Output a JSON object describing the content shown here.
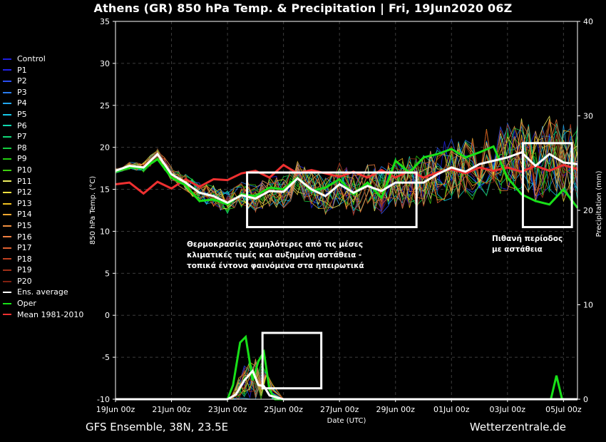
{
  "title": "Athens  (GR)  850 hPa Temp. & Precipitation | Fri, 19Jun2020 06Z",
  "footer": {
    "left": "GFS Ensemble, 38N, 23.5E",
    "right": "Wetterzentrale.de"
  },
  "annotations": {
    "box1_text": "Θερμοκρασίες χαμηλότερες από τις μέσες κλιματικές τιμές και αυξημένη αστάθεια - τοπικά έντονα φαινόμενα στα ηπειρωτικά",
    "box2_text": "Πιθανή περίοδος με αστάθεια"
  },
  "chart_data": {
    "type": "line",
    "title": "Athens  (GR)  850 hPa Temp. & Precipitation | Fri, 19Jun2020 06Z",
    "xlabel": "Date (UTC)",
    "ylabel": "850 hPa Temp. (°C)",
    "y2label": "Precipitation (mm)",
    "ylim": [
      -10,
      35
    ],
    "y2lim": [
      0,
      40
    ],
    "yticks": [
      35,
      30,
      25,
      20,
      15,
      10,
      5,
      0,
      -5,
      -10
    ],
    "y2ticks": [
      40,
      30,
      20,
      10,
      0
    ],
    "x_ticks": [
      {
        "day": 0,
        "label": "19Jun 00z"
      },
      {
        "day": 2,
        "label": "21Jun 00z"
      },
      {
        "day": 4,
        "label": "23Jun 00z"
      },
      {
        "day": 6,
        "label": "25Jun 00z"
      },
      {
        "day": 8,
        "label": "27Jun 00z"
      },
      {
        "day": 10,
        "label": "29Jun 00z"
      },
      {
        "day": 12,
        "label": "01Jul 00z"
      },
      {
        "day": 14,
        "label": "03Jul 00z"
      },
      {
        "day": 16,
        "label": "05Jul 00z"
      }
    ],
    "grid": true,
    "legend_position": "left",
    "highlight_boxes": [
      {
        "x": [
          4.7,
          10.75
        ],
        "y": [
          10.5,
          17.0
        ]
      },
      {
        "x": [
          14.55,
          16.3
        ],
        "y": [
          10.5,
          20.5
        ]
      },
      {
        "x": [
          5.25,
          7.35
        ],
        "y": [
          -8.7,
          -2.1
        ]
      }
    ],
    "series": [
      {
        "name": "Control",
        "color": "#1f1fe0"
      },
      {
        "name": "P1",
        "color": "#2222e8"
      },
      {
        "name": "P2",
        "color": "#2a4ff0"
      },
      {
        "name": "P3",
        "color": "#2a7cf0"
      },
      {
        "name": "P4",
        "color": "#22a8f0"
      },
      {
        "name": "P5",
        "color": "#16c8e8"
      },
      {
        "name": "P6",
        "color": "#10d8b0"
      },
      {
        "name": "P7",
        "color": "#10d878"
      },
      {
        "name": "P8",
        "color": "#14d040"
      },
      {
        "name": "P9",
        "color": "#22d010"
      },
      {
        "name": "P10",
        "color": "#40d010"
      },
      {
        "name": "P11",
        "color": "#f0f060"
      },
      {
        "name": "P12",
        "color": "#f0e040"
      },
      {
        "name": "P13",
        "color": "#f0c020"
      },
      {
        "name": "P14",
        "color": "#f0a830"
      },
      {
        "name": "P15",
        "color": "#f09040"
      },
      {
        "name": "P16",
        "color": "#f08040"
      },
      {
        "name": "P17",
        "color": "#e06030"
      },
      {
        "name": "P18",
        "color": "#c04020"
      },
      {
        "name": "P19",
        "color": "#a03018"
      },
      {
        "name": "P20",
        "color": "#802010"
      },
      {
        "name": "Ens. average",
        "color": "#ffffff",
        "temp": [
          [
            0,
            17.2
          ],
          [
            0.5,
            17.8
          ],
          [
            1,
            17.6
          ],
          [
            1.5,
            19.2
          ],
          [
            2,
            16.8
          ],
          [
            2.5,
            15.8
          ],
          [
            3,
            14.6
          ],
          [
            3.5,
            14.2
          ],
          [
            4,
            13.4
          ],
          [
            4.5,
            14.3
          ],
          [
            5,
            13.9
          ],
          [
            5.5,
            14.8
          ],
          [
            6,
            14.7
          ],
          [
            6.5,
            16.3
          ],
          [
            7,
            15.0
          ],
          [
            7.5,
            14.2
          ],
          [
            8,
            15.6
          ],
          [
            8.5,
            14.6
          ],
          [
            9,
            15.4
          ],
          [
            9.5,
            14.8
          ],
          [
            10,
            15.8
          ],
          [
            10.5,
            15.8
          ],
          [
            11,
            15.8
          ],
          [
            11.5,
            16.8
          ],
          [
            12,
            17.6
          ],
          [
            12.5,
            17.1
          ],
          [
            13,
            18.0
          ],
          [
            13.5,
            18.4
          ],
          [
            14,
            18.8
          ],
          [
            14.5,
            19.4
          ],
          [
            15,
            17.8
          ],
          [
            15.5,
            19.2
          ],
          [
            16,
            18.2
          ],
          [
            16.5,
            18.0
          ]
        ],
        "precip": [
          [
            0,
            0
          ],
          [
            4.0,
            0
          ],
          [
            4.3,
            0.5
          ],
          [
            4.6,
            2.0
          ],
          [
            4.9,
            3.0
          ],
          [
            5.1,
            1.5
          ],
          [
            5.3,
            1.4
          ],
          [
            5.5,
            0.4
          ],
          [
            6,
            0
          ],
          [
            16.5,
            0
          ]
        ]
      },
      {
        "name": "Oper",
        "color": "#18e018",
        "temp": [
          [
            0,
            17.1
          ],
          [
            0.5,
            17.6
          ],
          [
            1,
            17.5
          ],
          [
            1.5,
            18.6
          ],
          [
            2,
            16.4
          ],
          [
            2.5,
            15.5
          ],
          [
            3,
            13.6
          ],
          [
            3.5,
            13.8
          ],
          [
            4,
            13.2
          ],
          [
            4.5,
            14.4
          ],
          [
            5,
            14.2
          ],
          [
            5.5,
            15.2
          ],
          [
            6,
            15.0
          ],
          [
            6.5,
            16.4
          ],
          [
            7,
            14.8
          ],
          [
            7.5,
            15.2
          ],
          [
            8,
            16.2
          ],
          [
            8.5,
            14.4
          ],
          [
            9,
            15.8
          ],
          [
            9.5,
            14.0
          ],
          [
            10,
            18.4
          ],
          [
            10.5,
            17.0
          ],
          [
            11,
            18.8
          ],
          [
            11.5,
            19.2
          ],
          [
            12,
            19.8
          ],
          [
            12.5,
            18.8
          ],
          [
            13,
            19.4
          ],
          [
            13.5,
            20.1
          ],
          [
            14,
            16.4
          ],
          [
            14.5,
            14.4
          ],
          [
            15,
            13.6
          ],
          [
            15.5,
            13.2
          ],
          [
            16,
            15.0
          ],
          [
            16.5,
            12.8
          ]
        ],
        "precip": [
          [
            0,
            0
          ],
          [
            4.0,
            0
          ],
          [
            4.2,
            1.5
          ],
          [
            4.45,
            6.0
          ],
          [
            4.65,
            6.6
          ],
          [
            4.9,
            2.0
          ],
          [
            5.1,
            4.0
          ],
          [
            5.3,
            5.0
          ],
          [
            5.5,
            1.0
          ],
          [
            5.7,
            0
          ],
          [
            15.55,
            0
          ],
          [
            15.75,
            2.5
          ],
          [
            15.95,
            0
          ],
          [
            16.5,
            0
          ]
        ]
      },
      {
        "name": "Mean 1981-2010",
        "color": "#ee3030",
        "temp": [
          [
            0,
            15.6
          ],
          [
            0.5,
            15.8
          ],
          [
            1,
            14.5
          ],
          [
            1.5,
            15.9
          ],
          [
            2,
            15.1
          ],
          [
            2.5,
            16.2
          ],
          [
            3,
            15.3
          ],
          [
            3.5,
            16.2
          ],
          [
            4,
            16.1
          ],
          [
            4.5,
            16.9
          ],
          [
            5,
            17.2
          ],
          [
            5.5,
            16.4
          ],
          [
            6,
            17.9
          ],
          [
            6.5,
            16.9
          ],
          [
            7,
            17.3
          ],
          [
            7.5,
            16.9
          ],
          [
            8,
            16.5
          ],
          [
            8.5,
            17.1
          ],
          [
            9,
            16.4
          ],
          [
            9.5,
            17.3
          ],
          [
            10,
            16.4
          ],
          [
            10.5,
            17.2
          ],
          [
            11,
            16.4
          ],
          [
            11.5,
            17.0
          ],
          [
            12,
            17.4
          ],
          [
            12.5,
            16.9
          ],
          [
            13,
            17.6
          ],
          [
            13.5,
            17.2
          ],
          [
            14,
            17.6
          ],
          [
            14.5,
            17.1
          ],
          [
            15,
            17.8
          ],
          [
            15.5,
            17.2
          ],
          [
            16,
            17.9
          ],
          [
            16.5,
            17.4
          ]
        ]
      }
    ]
  }
}
